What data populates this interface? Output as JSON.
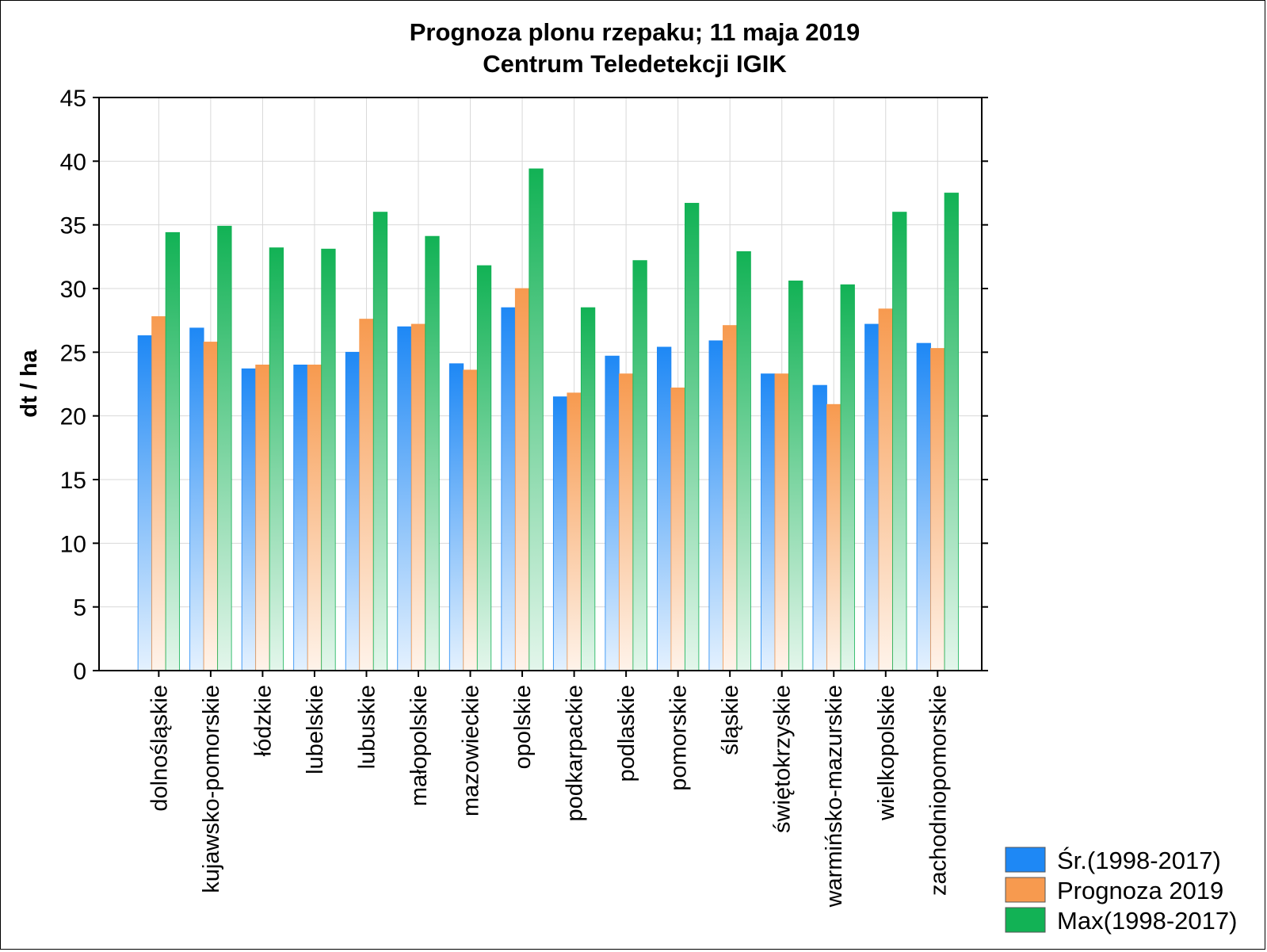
{
  "chart_data": {
    "type": "bar",
    "title": "Prognoza plonu rzepaku; 11 maja 2019",
    "subtitle": "Centrum Teledetekcji IGIK",
    "xlabel": "",
    "ylabel": "dt / ha",
    "ylim": [
      0,
      45
    ],
    "yticks": [
      0,
      5,
      10,
      15,
      20,
      25,
      30,
      35,
      40,
      45
    ],
    "grid": true,
    "legend_position": "bottom-right",
    "categories": [
      "dolnośląskie",
      "kujawsko-pomorskie",
      "łódzkie",
      "lubelskie",
      "lubuskie",
      "małopolskie",
      "mazowieckie",
      "opolskie",
      "podkarpackie",
      "podlaskie",
      "pomorskie",
      "śląskie",
      "świętokrzyskie",
      "warmińsko-mazurskie",
      "wielkopolskie",
      "zachodniopomorskie"
    ],
    "series": [
      {
        "name": "Śr.(1998-2017)",
        "color": "#1e88f5",
        "values": [
          26.3,
          26.9,
          23.7,
          24.0,
          25.0,
          27.0,
          24.1,
          28.5,
          21.5,
          24.7,
          25.4,
          25.9,
          23.3,
          22.4,
          27.2,
          25.7
        ]
      },
      {
        "name": "Prognoza 2019",
        "color": "#f79a4f",
        "values": [
          27.8,
          25.8,
          24.0,
          24.0,
          27.6,
          27.2,
          23.6,
          30.0,
          21.8,
          23.3,
          22.2,
          27.1,
          23.3,
          20.9,
          28.4,
          25.3
        ]
      },
      {
        "name": "Max(1998-2017)",
        "color": "#12b255",
        "values": [
          34.4,
          34.9,
          33.2,
          33.1,
          36.0,
          34.1,
          31.8,
          39.4,
          28.5,
          32.2,
          36.7,
          32.9,
          30.6,
          30.3,
          36.0,
          37.5
        ]
      }
    ]
  }
}
